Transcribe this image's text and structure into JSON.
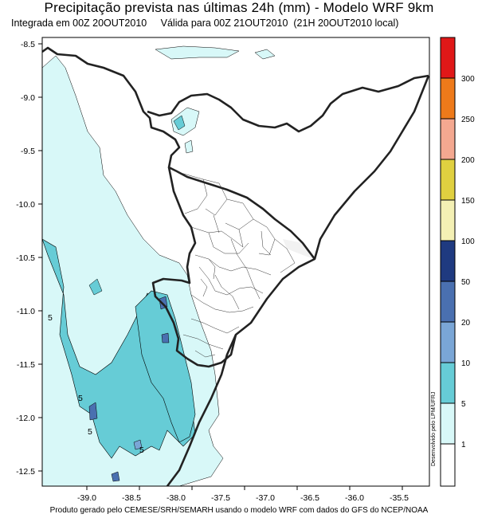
{
  "header": {
    "title": "Precipitação prevista nas últimas 24h (mm) - Modelo WRF 9km",
    "init": "Integrada em 00Z 20OUT2010",
    "valid": "Válida para 00Z 21OUT2010  (21H 20OUT2010 local)"
  },
  "axes": {
    "y_labels": [
      "-8.5",
      "-9.0",
      "-9.5",
      "-10.0",
      "-10.5",
      "-11.0",
      "-11.5",
      "-12.0",
      "-12.5"
    ],
    "x_labels": [
      "-39.0",
      "-38.5",
      "-38.0",
      "-37.5",
      "-37.0",
      "-36.5",
      "-36.0",
      "-35.5"
    ]
  },
  "colorbar": {
    "labels": [
      "1",
      "5",
      "10",
      "20",
      "50",
      "100",
      "150",
      "200",
      "250",
      "300"
    ],
    "colors": [
      "#ffffff",
      "#d8f8f8",
      "#66ccd6",
      "#7aa6d6",
      "#4a70b0",
      "#1f3a80",
      "#f4f0b4",
      "#e0d040",
      "#f4a890",
      "#ee7a1a",
      "#e01818"
    ],
    "credit": "Desenvolvido pelo LPM/UFRJ"
  },
  "contour_labels": [
    "5",
    "5",
    "5",
    "5"
  ],
  "footer": "Produto gerado pelo CEMESE/SRH/SEMARH usando o modelo WRF com dados do GFS do NCEP/NOAA"
}
